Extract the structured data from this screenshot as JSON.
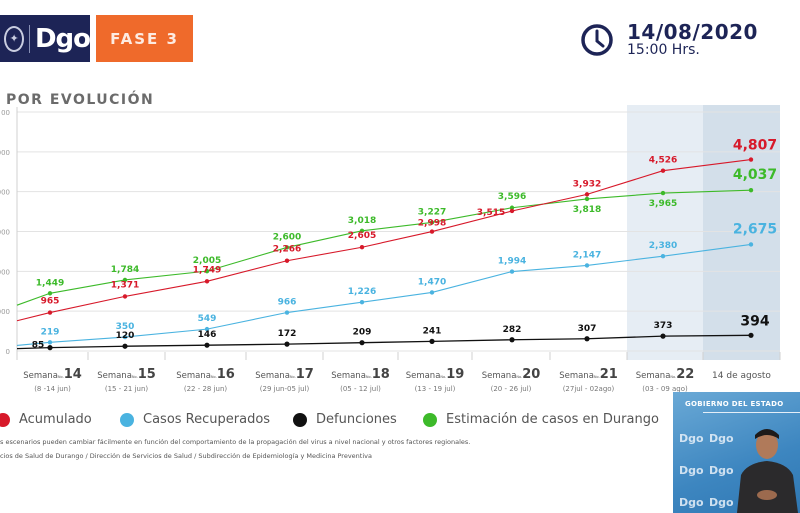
{
  "header": {
    "logo_text": "Dgo",
    "phase_label": "FASE 3",
    "date": "14/08/2020",
    "time": "15:00 Hrs.",
    "clock_icon": "clock-icon"
  },
  "section_title": "POR EVOLUCIÓN",
  "colors": {
    "acumulado": "#d7192a",
    "recuperados": "#4ab3e0",
    "defunciones": "#111111",
    "estimacion": "#3dba2a",
    "shade_light": "#e6edf4",
    "shade_dark": "#d3dfea"
  },
  "chart_data": {
    "type": "line",
    "title": "POR EVOLUCIÓN",
    "xlabel": "",
    "ylabel": "",
    "ylim": [
      0,
      6000
    ],
    "yticks": [
      0,
      1000,
      2000,
      3000,
      4000,
      5000,
      6000
    ],
    "ytick_labels": [
      "0",
      "000",
      "000",
      "000",
      "000",
      "000",
      "00"
    ],
    "grid": true,
    "legend_position": "bottom",
    "categories": [
      {
        "week": "Semana",
        "no": "No.",
        "num": "14",
        "range": "(8 -14 jun)"
      },
      {
        "week": "Semana",
        "no": "No.",
        "num": "15",
        "range": "(15 - 21 jun)"
      },
      {
        "week": "Semana",
        "no": "No.",
        "num": "16",
        "range": "(22 - 28 jun)"
      },
      {
        "week": "Semana",
        "no": "No.",
        "num": "17",
        "range": "(29 jun-05 jul)"
      },
      {
        "week": "Semana",
        "no": "No.",
        "num": "18",
        "range": "(05 - 12 jul)"
      },
      {
        "week": "Semana",
        "no": "No.",
        "num": "19",
        "range": "(13 - 19 jul)"
      },
      {
        "week": "Semana",
        "no": "No.",
        "num": "20",
        "range": "(20 - 26 jul)"
      },
      {
        "week": "Semana",
        "no": "No.",
        "num": "21",
        "range": "(27jul - 02ago)"
      },
      {
        "week": "Semana",
        "no": "No.",
        "num": "22",
        "range": "(03 - 09 ago)"
      },
      {
        "week": "",
        "no": "",
        "num": "",
        "range": "",
        "label": "14 de agosto"
      }
    ],
    "highlighted_categories": [
      8,
      9
    ],
    "series": [
      {
        "name": "Acumulado",
        "key": "acumulado",
        "start_value": 760,
        "values": [
          965,
          1371,
          1749,
          2266,
          2605,
          2998,
          3515,
          3932,
          4526,
          4807
        ],
        "labels": [
          "965",
          "1,371",
          "1,749",
          "2,266",
          "2,605",
          "2,998",
          "3,515",
          "3,932",
          "4,526",
          "4,807"
        ]
      },
      {
        "name": "Casos Recuperados",
        "key": "recuperados",
        "start_value": 140,
        "values": [
          219,
          350,
          549,
          966,
          1226,
          1470,
          1994,
          2147,
          2380,
          2675
        ],
        "labels": [
          "219",
          "350",
          "549",
          "966",
          "1,226",
          "1,470",
          "1,994",
          "2,147",
          "2,380",
          "2,675"
        ]
      },
      {
        "name": "Defunciones",
        "key": "defunciones",
        "start_value": 60,
        "values": [
          85,
          120,
          146,
          172,
          209,
          241,
          282,
          307,
          373,
          394
        ],
        "labels": [
          "85",
          "120",
          "146",
          "172",
          "209",
          "241",
          "282",
          "307",
          "373",
          "394"
        ]
      },
      {
        "name": "Estimación de casos en Durango",
        "key": "estimacion",
        "start_value": 1150,
        "values": [
          1449,
          1784,
          2005,
          2600,
          3018,
          3227,
          3596,
          3818,
          3965,
          4037
        ],
        "labels": [
          "1,449",
          "1,784",
          "2,005",
          "2,600",
          "3,018",
          "3,227",
          "3,596",
          "3,818",
          "3,965",
          "4,037"
        ]
      }
    ]
  },
  "legend": [
    {
      "label": "Acumulado",
      "key": "acumulado"
    },
    {
      "label": "Casos Recuperados",
      "key": "recuperados"
    },
    {
      "label": "Defunciones",
      "key": "defunciones"
    },
    {
      "label": "Estimación de casos en Durango",
      "key": "estimacion"
    }
  ],
  "notes": {
    "line1": "s escenarios pueden cambiar fácilmente en función del comportamiento de la propagación del virus a nivel nacional y otros factores regionales.",
    "line2": "cios de Salud de Durango / Dirección de Servicios de Salud / Subdirección de Epidemiología y Medicina Preventiva"
  },
  "video_overlay": {
    "title": "GOBIERNO DEL ESTADO",
    "watermark": "Dgo"
  }
}
